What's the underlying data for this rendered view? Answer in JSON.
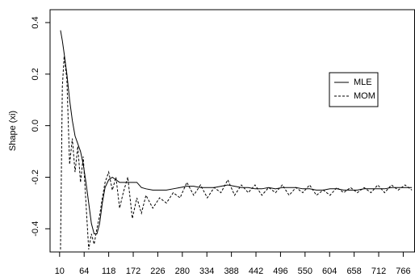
{
  "chart_data": {
    "type": "line",
    "y_label": "Shape (xi)",
    "x": [
      12,
      16,
      20,
      26,
      32,
      38,
      44,
      50,
      56,
      62,
      68,
      74,
      80,
      86,
      92,
      98,
      104,
      110,
      118,
      126,
      134,
      142,
      150,
      160,
      170,
      180,
      190,
      200,
      215,
      230,
      245,
      260,
      275,
      290,
      305,
      320,
      335,
      350,
      365,
      380,
      395,
      410,
      425,
      440,
      455,
      470,
      485,
      500,
      515,
      530,
      545,
      560,
      575,
      590,
      605,
      620,
      635,
      650,
      665,
      680,
      695,
      710,
      725,
      740,
      755,
      770,
      785
    ],
    "series": [
      {
        "name": "MLE",
        "color": "#000000",
        "line_style": "solid",
        "values": [
          0.37,
          0.33,
          0.28,
          0.2,
          0.1,
          0.02,
          -0.04,
          -0.07,
          -0.1,
          -0.15,
          -0.22,
          -0.3,
          -0.38,
          -0.42,
          -0.42,
          -0.38,
          -0.3,
          -0.24,
          -0.21,
          -0.2,
          -0.21,
          -0.22,
          -0.22,
          -0.22,
          -0.22,
          -0.22,
          -0.24,
          -0.245,
          -0.25,
          -0.25,
          -0.25,
          -0.245,
          -0.24,
          -0.235,
          -0.235,
          -0.24,
          -0.24,
          -0.24,
          -0.235,
          -0.23,
          -0.235,
          -0.24,
          -0.24,
          -0.245,
          -0.245,
          -0.24,
          -0.245,
          -0.24,
          -0.24,
          -0.24,
          -0.245,
          -0.245,
          -0.25,
          -0.25,
          -0.245,
          -0.245,
          -0.25,
          -0.25,
          -0.25,
          -0.245,
          -0.245,
          -0.245,
          -0.245,
          -0.24,
          -0.24,
          -0.24,
          -0.24
        ]
      },
      {
        "name": "MOM",
        "color": "#000000",
        "line_style": "dashed",
        "values": [
          -0.48,
          0.15,
          0.27,
          0.18,
          -0.15,
          -0.05,
          -0.18,
          -0.08,
          -0.22,
          -0.12,
          -0.3,
          -0.48,
          -0.42,
          -0.46,
          -0.4,
          -0.35,
          -0.28,
          -0.22,
          -0.18,
          -0.25,
          -0.2,
          -0.32,
          -0.26,
          -0.2,
          -0.36,
          -0.28,
          -0.34,
          -0.27,
          -0.32,
          -0.28,
          -0.3,
          -0.26,
          -0.28,
          -0.22,
          -0.27,
          -0.23,
          -0.28,
          -0.24,
          -0.26,
          -0.21,
          -0.27,
          -0.23,
          -0.26,
          -0.23,
          -0.27,
          -0.24,
          -0.26,
          -0.23,
          -0.27,
          -0.24,
          -0.26,
          -0.23,
          -0.27,
          -0.25,
          -0.27,
          -0.24,
          -0.26,
          -0.24,
          -0.26,
          -0.24,
          -0.26,
          -0.23,
          -0.26,
          -0.23,
          -0.25,
          -0.23,
          -0.25
        ]
      }
    ],
    "xlim": [
      -11,
      791
    ],
    "xticks": [
      10,
      64,
      118,
      172,
      226,
      280,
      334,
      388,
      442,
      496,
      550,
      604,
      658,
      712,
      766
    ],
    "ylim": [
      -0.49,
      0.45
    ],
    "yticks": [
      -0.4,
      -0.2,
      {
        "value": 0,
        "label": "0.0"
      },
      0.2,
      0.4
    ],
    "legend": "right"
  }
}
